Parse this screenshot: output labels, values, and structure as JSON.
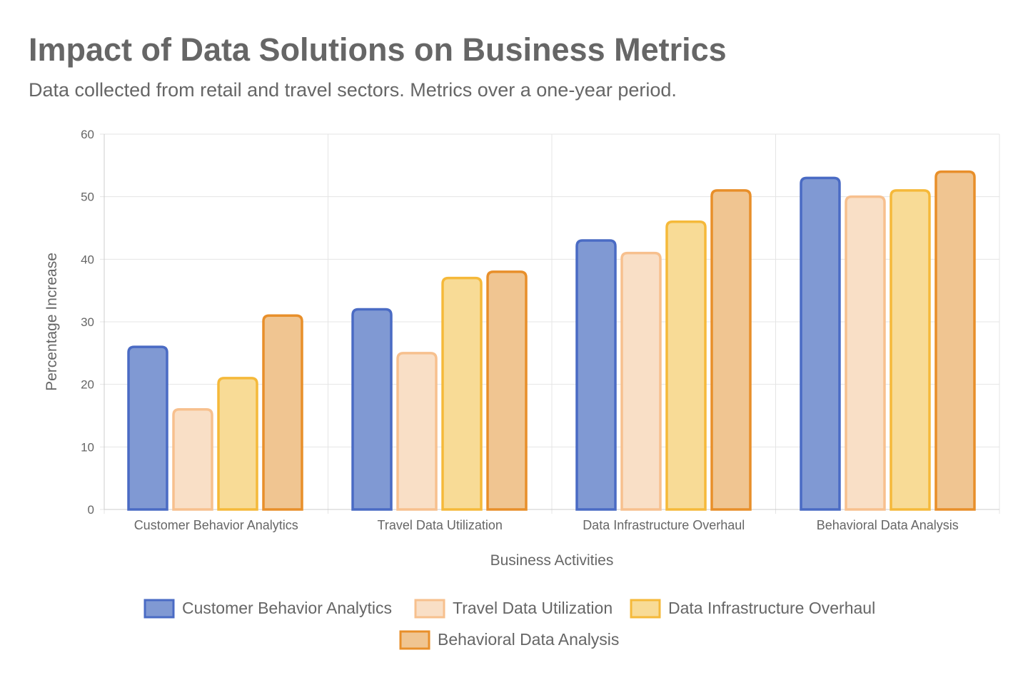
{
  "chart_data": {
    "type": "bar",
    "title": "Impact of Data Solutions on Business Metrics",
    "subtitle": "Data collected from retail and travel sectors. Metrics over a one-year period.",
    "xlabel": "Business Activities",
    "ylabel": "Percentage Increase",
    "ylim": [
      0,
      60
    ],
    "yticks": [
      "0",
      "10",
      "20",
      "30",
      "40",
      "50",
      "60"
    ],
    "grid": true,
    "legend_position": "bottom",
    "categories": [
      "Customer Behavior Analytics",
      "Travel Data Utilization",
      "Data Infrastructure Overhaul",
      "Behavioral Data Analysis"
    ],
    "series": [
      {
        "name": "Customer Behavior Analytics",
        "values": [
          26,
          32,
          43,
          53
        ],
        "fill": "#8099d3",
        "border": "#4a6bc4"
      },
      {
        "name": "Travel Data Utilization",
        "values": [
          16,
          25,
          41,
          50
        ],
        "fill": "#f9dfc6",
        "border": "#f7c08e"
      },
      {
        "name": "Data Infrastructure Overhaul",
        "values": [
          21,
          37,
          46,
          51
        ],
        "fill": "#f8db96",
        "border": "#f5b93a"
      },
      {
        "name": "Behavioral Data Analysis",
        "values": [
          31,
          38,
          51,
          54
        ],
        "fill": "#f0c591",
        "border": "#e88f2a"
      }
    ]
  }
}
